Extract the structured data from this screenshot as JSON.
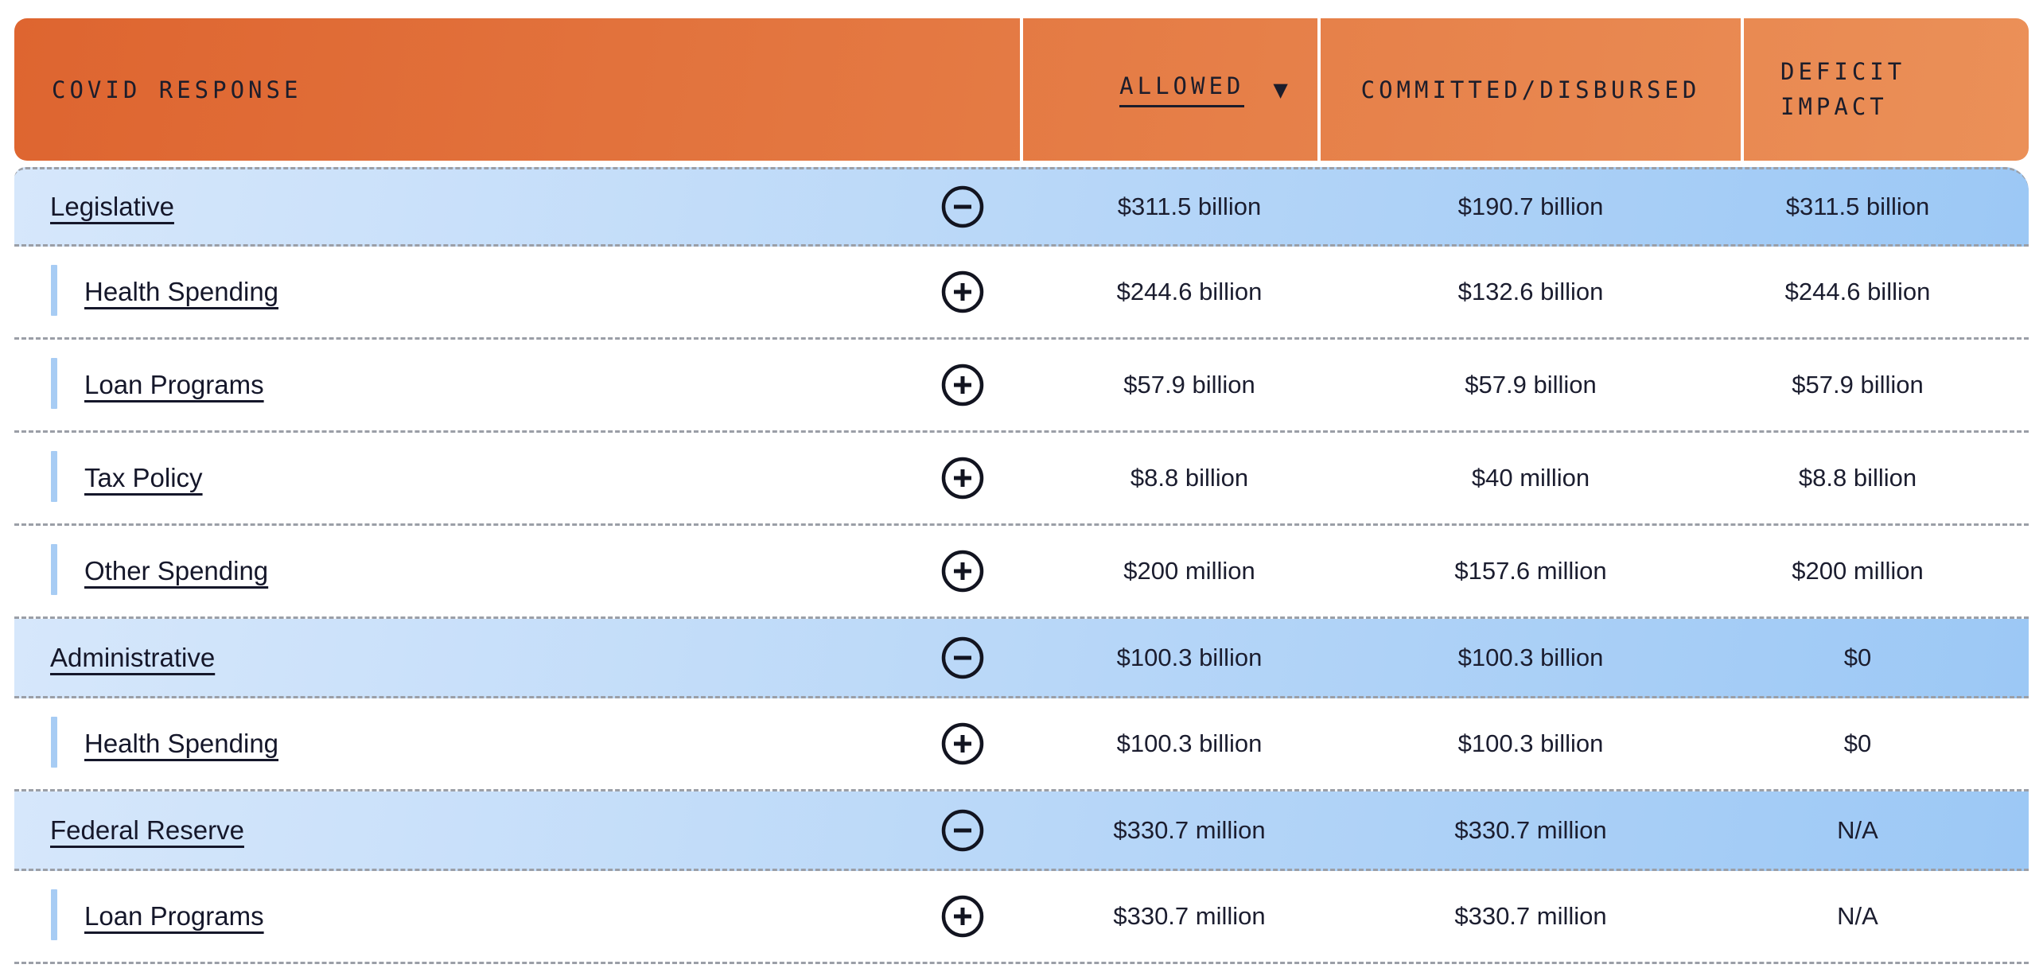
{
  "table": {
    "title": "COVID RESPONSE",
    "columns": {
      "name": "COVID RESPONSE",
      "allowed": "ALLOWED",
      "committed": "COMMITTED/DISBURSED",
      "deficit_line1": "DEFICIT",
      "deficit_line2": "IMPACT",
      "sort_indicator": "▼",
      "sorted_column": "ALLOWED"
    },
    "rows": [
      {
        "label": "Legislative",
        "type": "group",
        "toggle": "minus",
        "allowed": "$311.5 billion",
        "committed": "$190.7 billion",
        "deficit": "$311.5 billion"
      },
      {
        "label": "Health Spending",
        "type": "child",
        "toggle": "plus",
        "allowed": "$244.6 billion",
        "committed": "$132.6 billion",
        "deficit": "$244.6 billion"
      },
      {
        "label": "Loan Programs",
        "type": "child",
        "toggle": "plus",
        "allowed": "$57.9 billion",
        "committed": "$57.9 billion",
        "deficit": "$57.9 billion"
      },
      {
        "label": "Tax Policy",
        "type": "child",
        "toggle": "plus",
        "allowed": "$8.8 billion",
        "committed": "$40 million",
        "deficit": "$8.8 billion"
      },
      {
        "label": "Other Spending",
        "type": "child",
        "toggle": "plus",
        "allowed": "$200 million",
        "committed": "$157.6 million",
        "deficit": "$200 million"
      },
      {
        "label": "Administrative",
        "type": "group",
        "toggle": "minus",
        "allowed": "$100.3 billion",
        "committed": "$100.3 billion",
        "deficit": "$0"
      },
      {
        "label": "Health Spending",
        "type": "child",
        "toggle": "plus",
        "allowed": "$100.3 billion",
        "committed": "$100.3 billion",
        "deficit": "$0"
      },
      {
        "label": "Federal Reserve",
        "type": "group",
        "toggle": "minus",
        "allowed": "$330.7 million",
        "committed": "$330.7 million",
        "deficit": "N/A"
      },
      {
        "label": "Loan Programs",
        "type": "child",
        "toggle": "plus",
        "allowed": "$330.7 million",
        "committed": "$330.7 million",
        "deficit": "N/A"
      }
    ],
    "icons": {
      "sort_desc_icon": "▼",
      "minus_circle_icon": "collapse",
      "plus_circle_icon": "expand"
    },
    "colors": {
      "header_gradient_start": "#DE6530",
      "header_gradient_end": "#EB9058",
      "group_row_gradient_start": "#D6E7FB",
      "group_row_gradient_end": "#9CC8F5",
      "indent_bar": "#A7CCF4",
      "dashed_divider": "#9B9FA7",
      "text_dark": "#15172A"
    }
  }
}
